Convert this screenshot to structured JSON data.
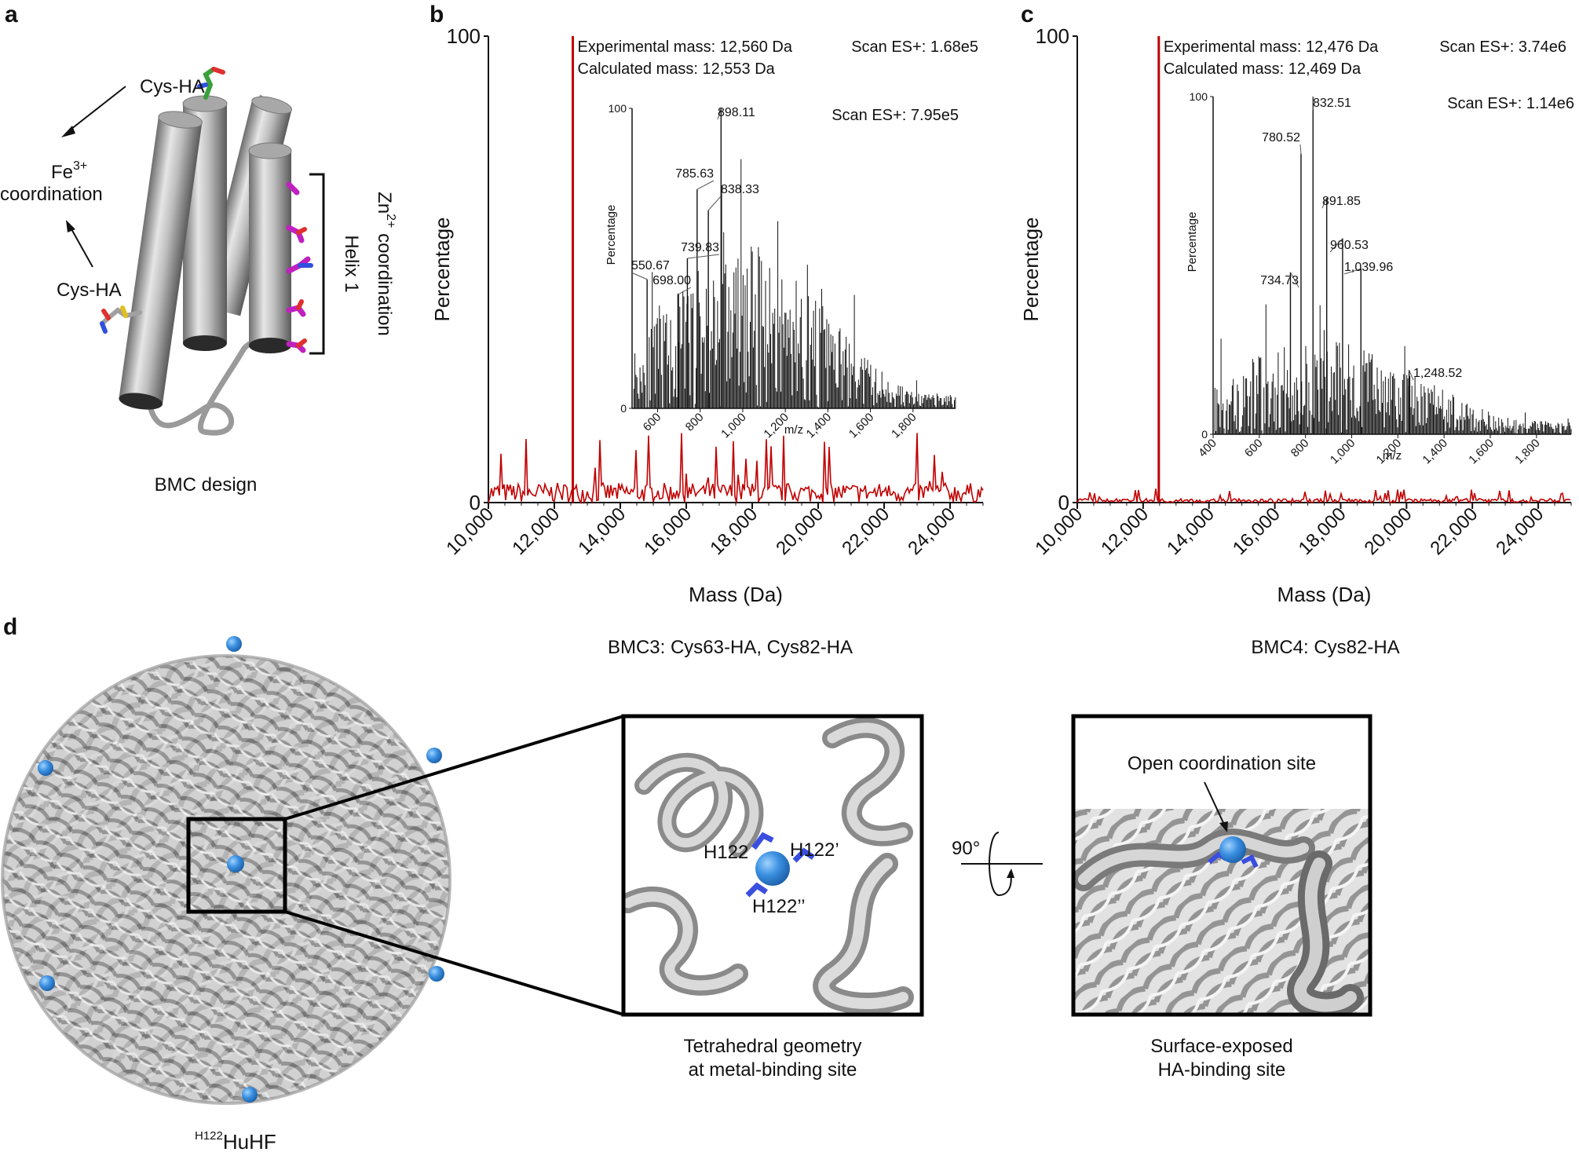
{
  "panels": {
    "a": {
      "letter": "a",
      "cys_ha_top": "Cys-HA",
      "fe_line1": "Fe",
      "fe_sup": "3+",
      "fe_line2": "coordination",
      "cys_ha_bottom": "Cys-HA",
      "zn_base": "Zn",
      "zn_sup": "2+",
      "zn_rest": " coordination",
      "helix": "Helix 1",
      "caption": "BMC design"
    },
    "b": {
      "letter": "b",
      "caption": "BMC3: Cys63-HA, Cys82-HA"
    },
    "c": {
      "letter": "c",
      "caption": "BMC4: Cys82-HA"
    },
    "d": {
      "letter": "d",
      "cage_label_sup": "H122",
      "cage_label_base": "HuHF",
      "zoom_labels": [
        "H122",
        "H122’",
        "H122’’"
      ],
      "zoom_caption_1": "Tetrahedral geometry",
      "zoom_caption_2": "at metal-binding site",
      "rotation": "90°",
      "surface_annotation": "Open coordination site",
      "surface_caption_1": "Surface-exposed",
      "surface_caption_2": "HA-binding site"
    }
  },
  "chart_data": [
    {
      "id": "b-main",
      "type": "line",
      "xlabel": "Mass (Da)",
      "ylabel": "Percentage",
      "xlim": [
        10000,
        25000
      ],
      "ylim": [
        0,
        100
      ],
      "xticks": [
        10000,
        12000,
        14000,
        16000,
        18000,
        20000,
        22000,
        24000
      ],
      "xtick_labels": [
        "10,000",
        "12,000",
        "14,000",
        "16,000",
        "18,000",
        "20,000",
        "22,000",
        "24,000"
      ],
      "yticks": [
        0,
        100
      ],
      "ytick_labels": [
        "0",
        "100"
      ],
      "color": "#c00000",
      "peak": {
        "x": 12560,
        "y": 100
      },
      "annotations": [
        "Experimental mass: 12,560 Da",
        "Calculated mass: 12,553 Da"
      ],
      "scan": "Scan ES+: 1.68e5"
    },
    {
      "id": "b-inset",
      "type": "bar",
      "xlabel": "m/z",
      "ylabel": "Percentage",
      "xlim": [
        480,
        2000
      ],
      "ylim": [
        0,
        100
      ],
      "xticks": [
        600,
        800,
        1000,
        1200,
        1400,
        1600,
        1800
      ],
      "xtick_labels": [
        "600",
        "800",
        "1,000",
        "1,200",
        "1,400",
        "1,600",
        "1,800"
      ],
      "yticks": [
        0,
        100
      ],
      "ytick_labels": [
        "0",
        "100"
      ],
      "scan": "Scan ES+: 7.95e5",
      "peaks": [
        {
          "x": 898.11,
          "y": 100,
          "label": "898.11"
        },
        {
          "x": 785.63,
          "y": 73,
          "label": "785.63"
        },
        {
          "x": 838.33,
          "y": 66,
          "label": "838.33"
        },
        {
          "x": 739.83,
          "y": 50,
          "label": "739.83"
        },
        {
          "x": 550.67,
          "y": 43,
          "label": "550.67"
        },
        {
          "x": 698.0,
          "y": 38,
          "label": "698.00"
        }
      ]
    },
    {
      "id": "c-main",
      "type": "line",
      "xlabel": "Mass (Da)",
      "ylabel": "Percentage",
      "xlim": [
        10000,
        25000
      ],
      "ylim": [
        0,
        100
      ],
      "xticks": [
        10000,
        12000,
        14000,
        16000,
        18000,
        20000,
        22000,
        24000
      ],
      "xtick_labels": [
        "10,000",
        "12,000",
        "14,000",
        "16,000",
        "18,000",
        "20,000",
        "22,000",
        "24,000"
      ],
      "yticks": [
        0,
        100
      ],
      "ytick_labels": [
        "0",
        "100"
      ],
      "color": "#c00000",
      "peak": {
        "x": 12476,
        "y": 100
      },
      "annotations": [
        "Experimental mass: 12,476 Da",
        "Calculated mass: 12,469 Da"
      ],
      "scan": "Scan ES+: 3.74e6"
    },
    {
      "id": "c-inset",
      "type": "bar",
      "xlabel": "m/z",
      "ylabel": "Percentage",
      "xlim": [
        400,
        1950
      ],
      "ylim": [
        0,
        100
      ],
      "xticks": [
        400,
        600,
        800,
        1000,
        1200,
        1400,
        1600,
        1800
      ],
      "xtick_labels": [
        "400",
        "600",
        "800",
        "1,000",
        "1,200",
        "1,400",
        "1,600",
        "1,800"
      ],
      "yticks": [
        0,
        100
      ],
      "ytick_labels": [
        "0",
        "100"
      ],
      "scan": "Scan ES+: 1.14e6",
      "peaks": [
        {
          "x": 832.51,
          "y": 100,
          "label": "832.51"
        },
        {
          "x": 780.52,
          "y": 83,
          "label": "780.52"
        },
        {
          "x": 891.85,
          "y": 70,
          "label": "891.85"
        },
        {
          "x": 960.53,
          "y": 58,
          "label": "960.53"
        },
        {
          "x": 1039.96,
          "y": 49,
          "label": "1,039.96"
        },
        {
          "x": 734.73,
          "y": 48,
          "label": "734.73"
        },
        {
          "x": 1248.52,
          "y": 19,
          "label": "1,248.52"
        }
      ]
    }
  ]
}
